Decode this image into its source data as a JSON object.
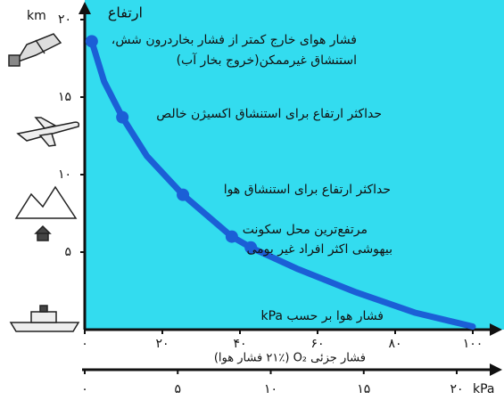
{
  "chart_data": {
    "type": "line",
    "y_label": "ارتفاع",
    "y_unit": "km",
    "x_label": "فشار هوا بر حسب kPa",
    "x2_label": "فشار جزئی O₂ (۲۱٪ فشار هوا)",
    "x2_unit": "kPa",
    "color": "#1b5fd6",
    "background": "#33dcef",
    "x": [
      1.8,
      5,
      9.7,
      16,
      25.3,
      37.9,
      42.8,
      55,
      70,
      85,
      100
    ],
    "values": [
      18.6,
      16,
      13.7,
      11.2,
      8.7,
      6.0,
      5.3,
      3.9,
      2.4,
      1.1,
      0.2
    ],
    "markers": {
      "x": [
        1.8,
        9.7,
        25.3,
        37.9,
        42.8
      ],
      "values": [
        18.6,
        13.7,
        8.7,
        6.0,
        5.3
      ]
    },
    "annotations": [
      "فشار هوای خارج کمتر از فشار بخاردرون شش،",
      "استنشاق غیرممکن(خروج بخار آب)",
      "حداکثر ارتفاع برای استنشاق اکسیژن خالص",
      "حداکثر ارتفاع برای استنشاق هوا",
      "مرتفع‌ترین محل سکونت",
      "بیهوشی اکثر افراد غیر بومی"
    ],
    "xlim": [
      0,
      100
    ],
    "ylim": [
      0,
      20
    ],
    "x2lim": [
      0,
      20
    ],
    "xticks": [
      {
        "value": 0,
        "label": "۰"
      },
      {
        "value": 20,
        "label": "۲۰"
      },
      {
        "value": 40,
        "label": "۴۰"
      },
      {
        "value": 60,
        "label": "۶۰"
      },
      {
        "value": 80,
        "label": "۸۰"
      },
      {
        "value": 100,
        "label": "۱۰۰"
      }
    ],
    "yticks": [
      {
        "value": 5,
        "label": "۵"
      },
      {
        "value": 10,
        "label": "۱۰"
      },
      {
        "value": 15,
        "label": "۱۵"
      },
      {
        "value": 20,
        "label": "۲۰"
      }
    ],
    "x2ticks": [
      {
        "value": 0,
        "label": "۰"
      },
      {
        "value": 5,
        "label": "۵"
      },
      {
        "value": 10,
        "label": "۱۰"
      },
      {
        "value": 15,
        "label": "۱۵"
      },
      {
        "value": 20,
        "label": "۲۰"
      }
    ]
  }
}
